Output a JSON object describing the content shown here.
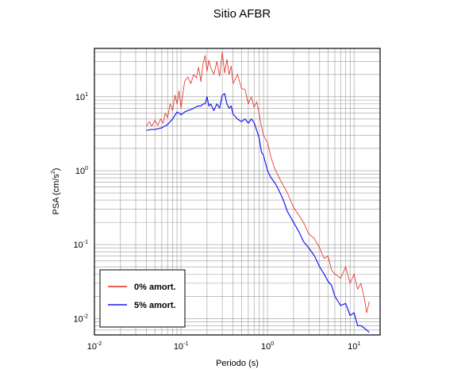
{
  "chart_data": {
    "type": "line",
    "title": "Sitio AFBR",
    "xlabel": "Periodo (s)",
    "ylabel": {
      "base": "PSA (cm/s",
      "exp": "2",
      "tail": ")"
    },
    "x_scale": "log",
    "y_scale": "log",
    "xlim": [
      0.01,
      20
    ],
    "ylim": [
      0.006,
      45
    ],
    "grid": true,
    "x_ticks": [
      {
        "value": 0.01,
        "base": "10",
        "exp": "-2"
      },
      {
        "value": 0.1,
        "base": "10",
        "exp": "-1"
      },
      {
        "value": 1,
        "base": "10",
        "exp": "0"
      },
      {
        "value": 10,
        "base": "10",
        "exp": "1"
      }
    ],
    "y_ticks": [
      {
        "value": 0.01,
        "base": "10",
        "exp": "-2"
      },
      {
        "value": 0.1,
        "base": "10",
        "exp": "-1"
      },
      {
        "value": 1,
        "base": "10",
        "exp": "0"
      },
      {
        "value": 10,
        "base": "10",
        "exp": "1"
      }
    ],
    "legend_position": "bottom-left",
    "series": [
      {
        "name": "0% amort.",
        "color": "#e8281e",
        "x": [
          0.04,
          0.043,
          0.046,
          0.05,
          0.054,
          0.058,
          0.062,
          0.066,
          0.07,
          0.075,
          0.08,
          0.085,
          0.09,
          0.095,
          0.1,
          0.11,
          0.12,
          0.13,
          0.14,
          0.15,
          0.16,
          0.17,
          0.18,
          0.19,
          0.2,
          0.21,
          0.22,
          0.24,
          0.26,
          0.28,
          0.3,
          0.32,
          0.34,
          0.36,
          0.38,
          0.4,
          0.45,
          0.5,
          0.55,
          0.6,
          0.65,
          0.7,
          0.75,
          0.8,
          0.85,
          0.9,
          1.0,
          1.1,
          1.2,
          1.3,
          1.5,
          1.7,
          2.0,
          2.3,
          2.6,
          3.0,
          3.5,
          4.0,
          4.5,
          5.0,
          5.5,
          6.0,
          7.0,
          8.0,
          9.0,
          10.0,
          11.0,
          12.0,
          13.0,
          14.0,
          15.0
        ],
        "values": [
          4.0,
          4.6,
          4.0,
          4.8,
          4.1,
          5.0,
          4.4,
          6.0,
          5.2,
          8.0,
          6.5,
          10.5,
          8.0,
          12.0,
          7.0,
          16.0,
          18.5,
          15.0,
          20.0,
          18.0,
          25.0,
          16.0,
          28.0,
          36.0,
          22.0,
          31.0,
          25.0,
          20.0,
          30.0,
          19.0,
          40.0,
          21.0,
          32.0,
          20.0,
          26.0,
          15.0,
          20.0,
          13.0,
          12.5,
          8.0,
          10.0,
          7.2,
          8.5,
          6.0,
          4.0,
          3.0,
          2.4,
          1.5,
          1.1,
          0.9,
          0.65,
          0.5,
          0.32,
          0.25,
          0.2,
          0.14,
          0.12,
          0.09,
          0.065,
          0.07,
          0.045,
          0.04,
          0.035,
          0.05,
          0.03,
          0.04,
          0.025,
          0.03,
          0.02,
          0.012,
          0.017
        ]
      },
      {
        "name": "5% amort.",
        "color": "#1a1aeb",
        "x": [
          0.04,
          0.045,
          0.05,
          0.055,
          0.06,
          0.065,
          0.07,
          0.075,
          0.08,
          0.085,
          0.09,
          0.095,
          0.1,
          0.11,
          0.12,
          0.13,
          0.14,
          0.15,
          0.16,
          0.17,
          0.18,
          0.19,
          0.2,
          0.21,
          0.22,
          0.24,
          0.26,
          0.28,
          0.3,
          0.32,
          0.34,
          0.36,
          0.38,
          0.4,
          0.45,
          0.5,
          0.55,
          0.6,
          0.65,
          0.7,
          0.75,
          0.8,
          0.85,
          0.9,
          1.0,
          1.1,
          1.2,
          1.3,
          1.5,
          1.7,
          2.0,
          2.3,
          2.6,
          3.0,
          3.5,
          4.0,
          4.5,
          5.0,
          5.5,
          6.0,
          7.0,
          8.0,
          9.0,
          10.0,
          11.0,
          12.0,
          13.0,
          14.0,
          15.0
        ],
        "values": [
          3.5,
          3.6,
          3.6,
          3.7,
          3.8,
          4.0,
          4.2,
          4.6,
          5.0,
          5.6,
          6.2,
          6.0,
          5.7,
          6.2,
          6.5,
          6.7,
          7.0,
          7.3,
          7.5,
          7.5,
          8.0,
          8.0,
          10.0,
          7.5,
          8.0,
          6.5,
          8.0,
          7.0,
          10.5,
          11.0,
          8.0,
          7.0,
          7.5,
          5.8,
          5.0,
          4.6,
          5.0,
          4.4,
          5.0,
          4.5,
          3.5,
          2.8,
          1.8,
          1.6,
          1.0,
          0.8,
          0.7,
          0.6,
          0.42,
          0.28,
          0.2,
          0.15,
          0.11,
          0.09,
          0.07,
          0.05,
          0.04,
          0.032,
          0.028,
          0.02,
          0.015,
          0.016,
          0.011,
          0.012,
          0.008,
          0.008,
          0.0075,
          0.007,
          0.0065
        ]
      }
    ]
  }
}
